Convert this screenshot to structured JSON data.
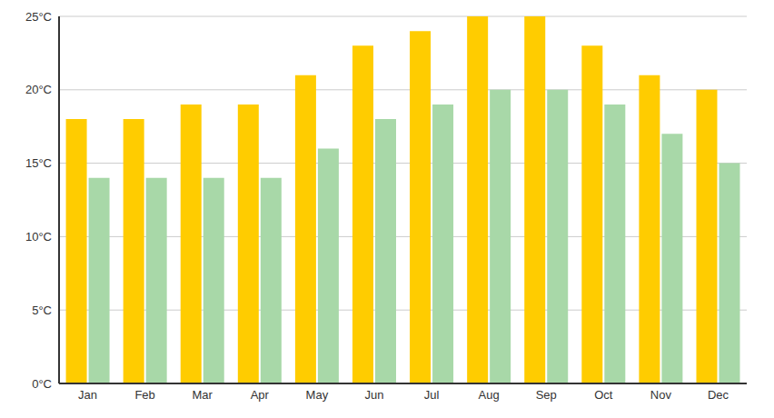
{
  "chart_data": {
    "type": "bar",
    "categories": [
      "Jan",
      "Feb",
      "Mar",
      "Apr",
      "May",
      "Jun",
      "Jul",
      "Aug",
      "Sep",
      "Oct",
      "Nov",
      "Dec"
    ],
    "series": [
      {
        "color": "#ffcc00",
        "values": [
          18,
          18,
          19,
          19,
          21,
          23,
          24,
          25,
          25,
          23,
          21,
          20
        ]
      },
      {
        "color": "#a8d8a8",
        "values": [
          14,
          14,
          14,
          14,
          16,
          18,
          19,
          20,
          20,
          19,
          17,
          15
        ]
      }
    ],
    "ylim": [
      0,
      25
    ],
    "yticks": [
      {
        "value": 0,
        "label": "0°C"
      },
      {
        "value": 5,
        "label": "5°C"
      },
      {
        "value": 10,
        "label": "10°C"
      },
      {
        "value": 15,
        "label": "15°C"
      },
      {
        "value": 20,
        "label": "20°C"
      },
      {
        "value": 25,
        "label": "25°C"
      }
    ],
    "grid": true
  }
}
